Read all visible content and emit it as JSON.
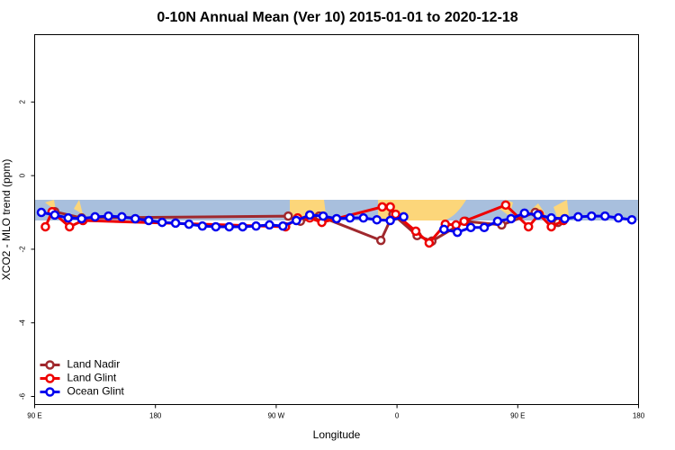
{
  "chart_data": {
    "type": "line",
    "title": "0-10N Annual Mean (Ver 10)   2015-01-01 to 2020-12-18",
    "xlabel": "Longitude",
    "ylabel": "XCO2 - MLO trend (ppm)",
    "xlim": [
      90,
      540
    ],
    "ylim": [
      -6.22,
      3.83
    ],
    "xticks": [
      {
        "value": 90,
        "label": "90 E"
      },
      180,
      {
        "value": 270,
        "label": "90 W"
      },
      {
        "value": 360,
        "label": "0"
      },
      {
        "value": 450,
        "label": "90 E"
      },
      {
        "value": 540,
        "label": "180"
      }
    ],
    "yticks": [
      -6,
      -4,
      -2,
      0,
      2
    ],
    "legend": "bottom-left",
    "series": [
      {
        "name": "Land Nadir",
        "color": "#a0282d",
        "x": [
          105,
          125,
          279,
          288,
          302,
          348,
          357,
          375,
          386,
          411,
          438,
          463,
          480
        ],
        "values": [
          -0.98,
          -1.15,
          -1.1,
          -1.24,
          -1.1,
          -1.76,
          -1.05,
          -1.63,
          -1.78,
          -1.24,
          -1.34,
          -1.0,
          -1.27
        ]
      },
      {
        "name": "Land Glint",
        "color": "#ee0000",
        "x": [
          98,
          103,
          116,
          126,
          277,
          286,
          295,
          304,
          349,
          355,
          359,
          374,
          384,
          396,
          404,
          410,
          441,
          458,
          466,
          475,
          484
        ],
        "values": [
          -1.39,
          -0.98,
          -1.39,
          -1.22,
          -1.39,
          -1.15,
          -1.15,
          -1.27,
          -0.85,
          -0.85,
          -1.05,
          -1.51,
          -1.83,
          -1.32,
          -1.34,
          -1.24,
          -0.8,
          -1.39,
          -1.05,
          -1.39,
          -1.22
        ]
      },
      {
        "name": "Ocean Glint",
        "color": "#0000ee",
        "x": [
          95,
          105,
          115,
          125,
          135,
          145,
          155,
          165,
          175,
          185,
          195,
          205,
          215,
          225,
          235,
          245,
          255,
          265,
          275,
          285,
          295,
          305,
          315,
          325,
          335,
          345,
          355,
          365,
          375,
          385,
          395,
          405,
          415,
          425,
          435,
          445,
          455,
          465,
          475,
          485,
          495,
          505,
          515,
          525,
          535
        ],
        "values": [
          -1.0,
          -1.07,
          -1.15,
          -1.17,
          -1.12,
          -1.1,
          -1.12,
          -1.17,
          -1.22,
          -1.27,
          -1.29,
          -1.32,
          -1.37,
          -1.39,
          -1.39,
          -1.39,
          -1.37,
          -1.34,
          -1.37,
          -1.22,
          -1.07,
          -1.1,
          -1.17,
          -1.15,
          -1.15,
          -1.2,
          -1.22,
          -1.12,
          null,
          null,
          -1.46,
          -1.54,
          -1.41,
          -1.41,
          -1.24,
          -1.17,
          -1.02,
          -1.07,
          -1.15,
          -1.17,
          -1.12,
          -1.1,
          -1.1,
          -1.15,
          -1.2
        ]
      }
    ]
  }
}
